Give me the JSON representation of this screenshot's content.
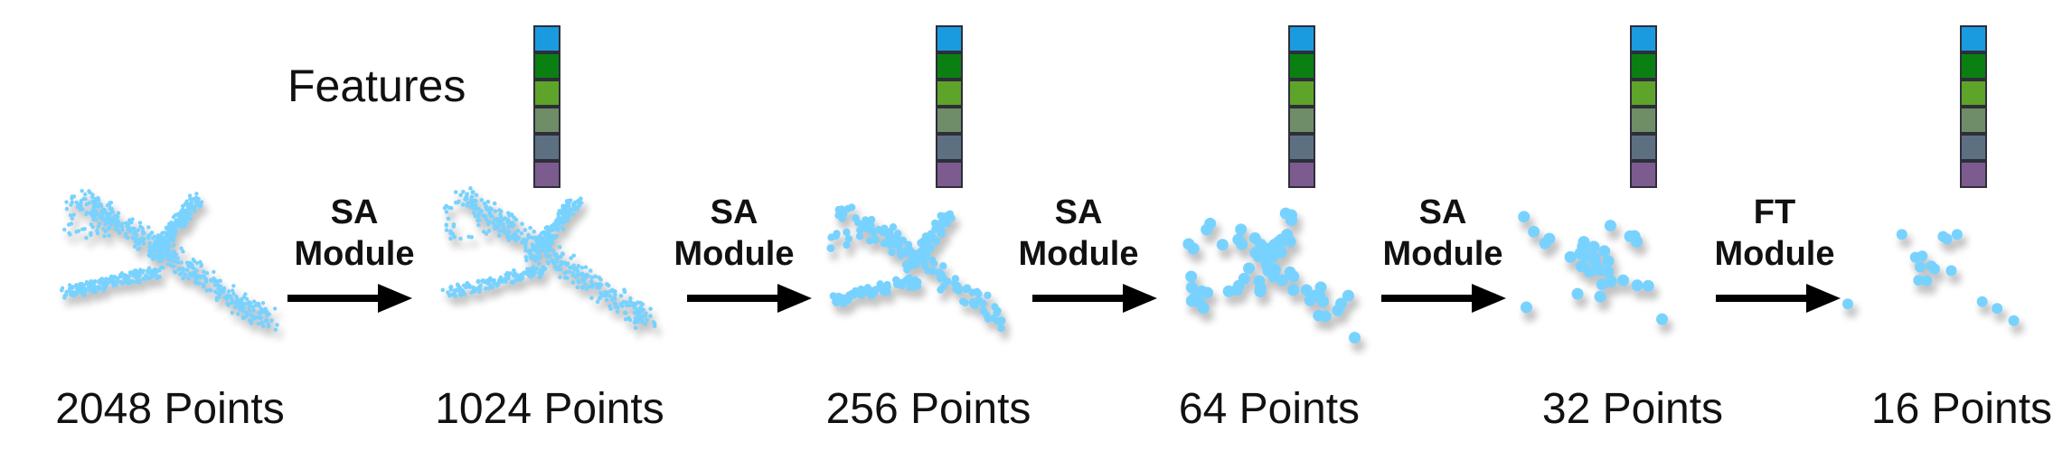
{
  "features_label": "Features",
  "feature_colors": [
    "#1a9be0",
    "#0a8012",
    "#5ea42a",
    "#6f8d66",
    "#5c7082",
    "#7c5b8e"
  ],
  "point_color": "#78d2ff",
  "stages": [
    {
      "count_label": "2048 Points",
      "point_total": 2048
    },
    {
      "count_label": "1024 Points",
      "point_total": 1024
    },
    {
      "count_label": "256 Points",
      "point_total": 256
    },
    {
      "count_label": "64 Points",
      "point_total": 64
    },
    {
      "count_label": "32 Points",
      "point_total": 32
    },
    {
      "count_label": "16 Points",
      "point_total": 16
    }
  ],
  "operations": [
    {
      "line1": "SA",
      "line2": "Module"
    },
    {
      "line1": "SA",
      "line2": "Module"
    },
    {
      "line1": "SA",
      "line2": "Module"
    },
    {
      "line1": "SA",
      "line2": "Module"
    },
    {
      "line1": "FT",
      "line2": "Module"
    }
  ]
}
